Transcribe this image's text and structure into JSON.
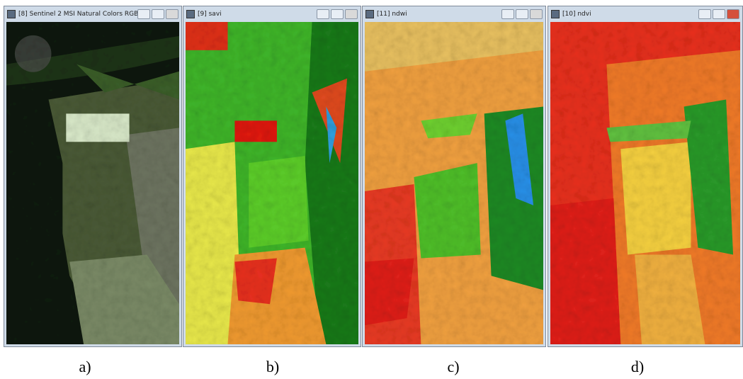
{
  "windows": [
    {
      "title": "[8] Sentinel 2 MSI Natural Colors RGB",
      "caption": "a)"
    },
    {
      "title": "[9] savi",
      "caption": "b)"
    },
    {
      "title": "[11] ndwi",
      "caption": "c)"
    },
    {
      "title": "[10] ndvi",
      "caption": "d)"
    }
  ]
}
